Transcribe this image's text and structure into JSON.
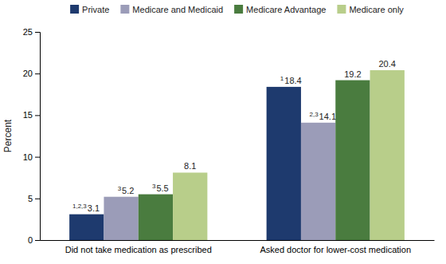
{
  "chart_data": {
    "type": "bar",
    "categories": [
      "Did not take medication as prescribed",
      "Asked doctor for lower-cost medication"
    ],
    "series": [
      {
        "name": "Private",
        "color": "#1e3a6e",
        "values": [
          3.1,
          18.4
        ],
        "superscripts": [
          "1,2,3",
          "1"
        ]
      },
      {
        "name": "Medicare and Medicaid",
        "color": "#9b9cb8",
        "values": [
          5.2,
          14.1
        ],
        "superscripts": [
          "3",
          "2,3"
        ]
      },
      {
        "name": "Medicare Advantage",
        "color": "#4a7c3f",
        "values": [
          5.5,
          19.2
        ],
        "superscripts": [
          "3",
          null
        ]
      },
      {
        "name": "Medicare only",
        "color": "#b8ce8a",
        "values": [
          8.1,
          20.4
        ],
        "superscripts": [
          null,
          null
        ]
      }
    ],
    "ylabel": "Percent",
    "ylim": [
      0,
      25
    ],
    "yticks": [
      0,
      5,
      10,
      15,
      20,
      25
    ],
    "data_labels": true,
    "legend": "top",
    "grid": false
  }
}
